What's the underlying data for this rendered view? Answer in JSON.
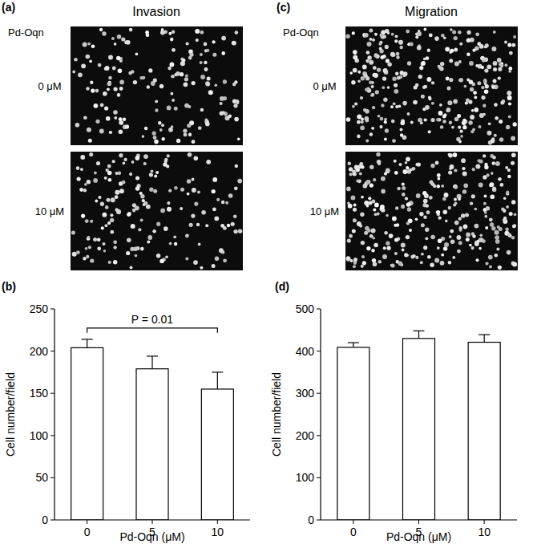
{
  "image_panels": [
    {
      "letter": "(a)",
      "title": "Invasion",
      "treatment": "Pd-Oqn",
      "rows": [
        "0 μM",
        "10 μM"
      ]
    },
    {
      "letter": "(c)",
      "title": "Migration",
      "treatment": "Pd-Oqn",
      "rows": [
        "0 μM",
        "10 μM"
      ]
    }
  ],
  "chart_data": [
    {
      "type": "bar",
      "title": "(b)",
      "categories": [
        "0",
        "5",
        "10"
      ],
      "values": [
        204,
        179,
        155
      ],
      "errors": [
        10,
        15,
        20
      ],
      "color": "#ffffff",
      "x_label": "Pd-Oqn (μM)",
      "y_label": "Cell number/field",
      "ylim": [
        0,
        250
      ],
      "yticks": [
        0,
        50,
        100,
        150,
        200,
        250
      ],
      "grid": false,
      "annotations": [
        {
          "text": "P = 0.01",
          "from": 0,
          "to": 2
        }
      ]
    },
    {
      "type": "bar",
      "title": "(d)",
      "categories": [
        "0",
        "5",
        "10"
      ],
      "values": [
        409,
        430,
        421
      ],
      "errors": [
        11,
        18,
        18
      ],
      "color": "#ffffff",
      "x_label": "Pd-Oqn (μM)",
      "y_label": "Cell number/field",
      "ylim": [
        0,
        500
      ],
      "yticks": [
        0,
        100,
        200,
        300,
        400,
        500
      ],
      "grid": false
    }
  ]
}
